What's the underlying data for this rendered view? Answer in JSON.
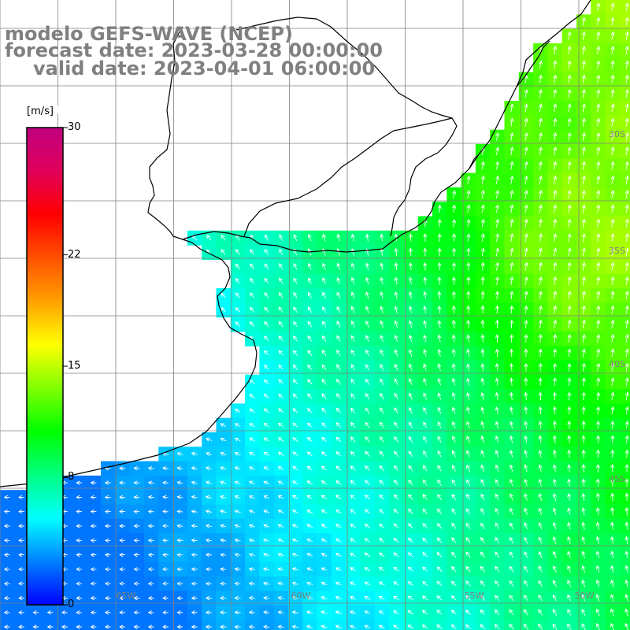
{
  "header": {
    "model": "modelo GEFS-WAVE (NCEP)",
    "forecast": "forecast date: 2023-03-28 00:00:00",
    "valid": "valid date: 2023-04-01 06:00:00"
  },
  "colorbar": {
    "unit": "[m/s]",
    "ticks": [
      "30",
      "22",
      "15",
      "8",
      "0"
    ],
    "tick_values": [
      30,
      22,
      15,
      8,
      0
    ],
    "range": [
      0,
      30
    ],
    "colors": [
      "#0000ff",
      "#0080ff",
      "#00ffff",
      "#00ff80",
      "#00ff00",
      "#80ff00",
      "#ffff00",
      "#ffa000",
      "#ff5000",
      "#ff0000",
      "#e0005a",
      "#c00080"
    ]
  },
  "map": {
    "latitude_labels": [
      "30S",
      "35S",
      "40S",
      "45S"
    ],
    "longitude_labels": [
      "65W",
      "60W",
      "55W",
      "50W"
    ],
    "palette": {
      "land": "#ffffff",
      "coast": "#000000",
      "grid": "#808080",
      "arrow": "#ffffff"
    }
  }
}
